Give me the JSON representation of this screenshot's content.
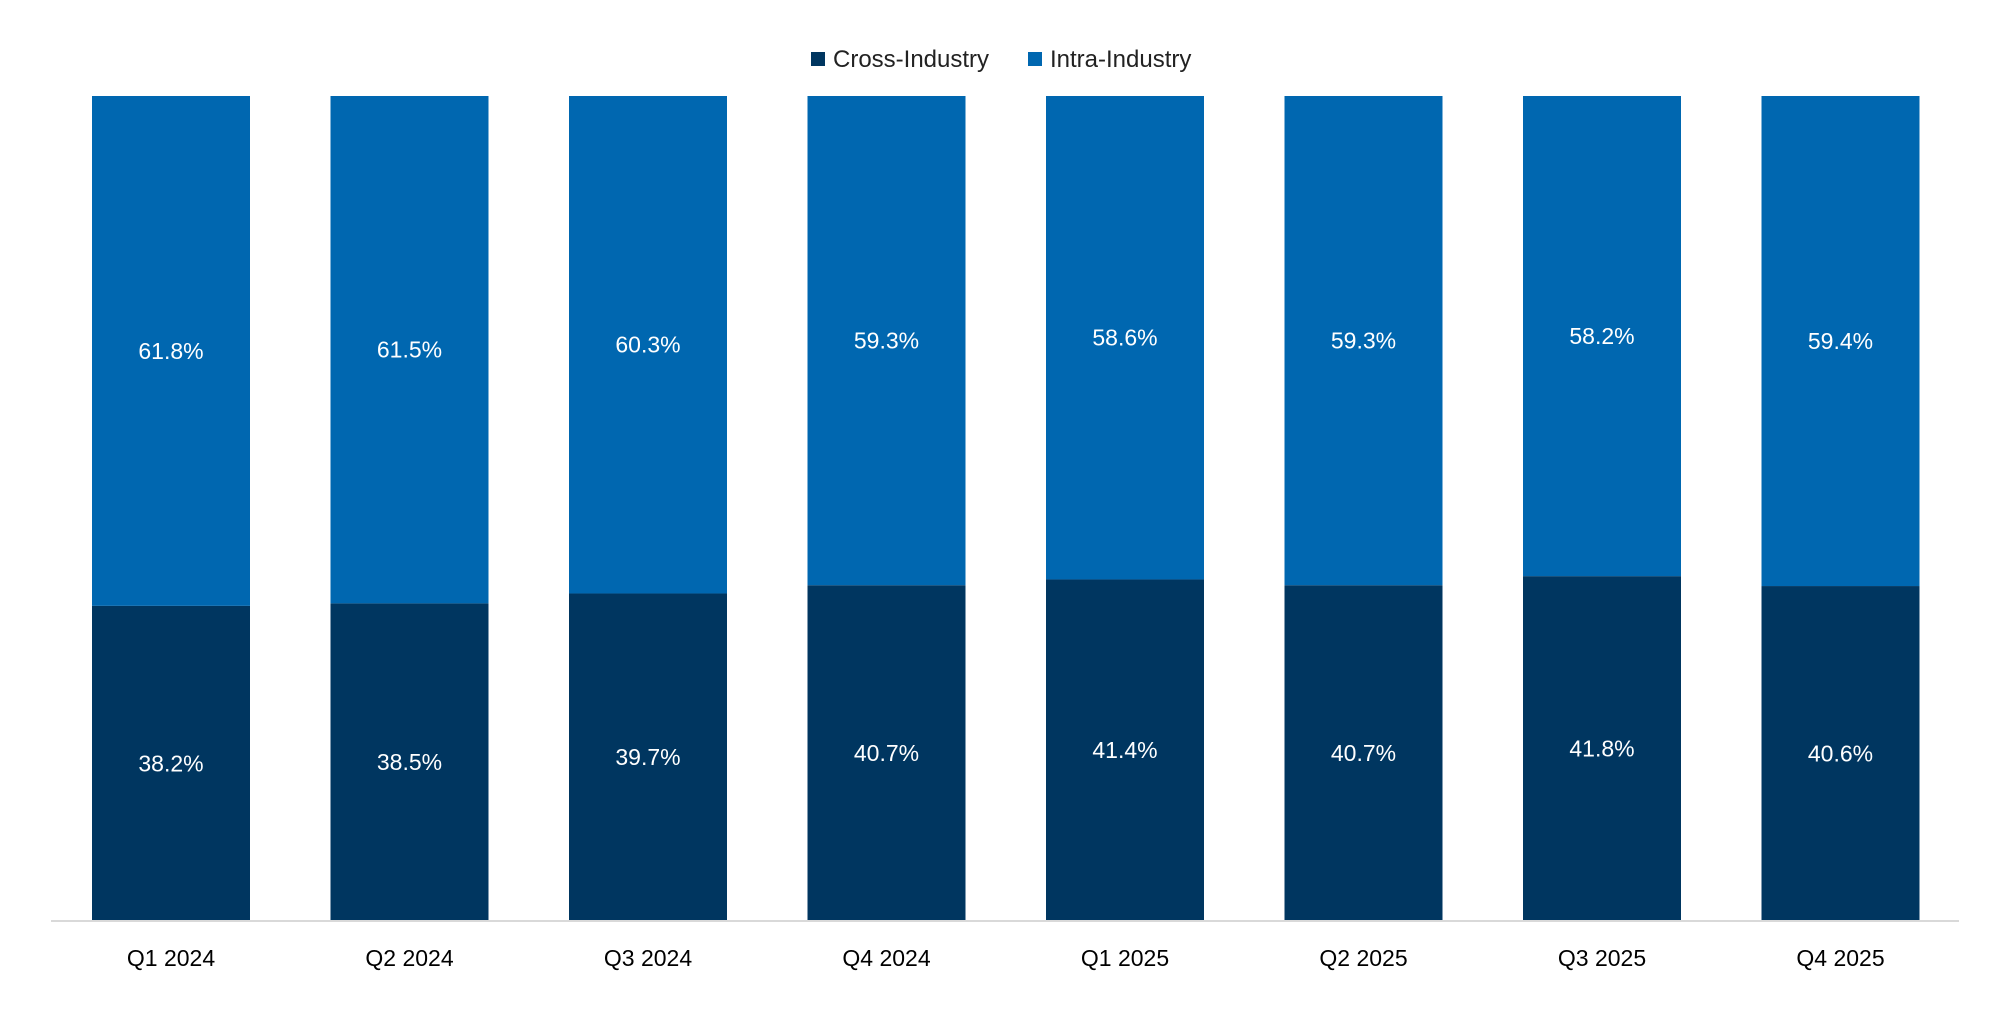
{
  "chart_data": {
    "type": "bar",
    "stacked": true,
    "categories": [
      "Q1 2024",
      "Q2 2024",
      "Q3 2024",
      "Q4 2024",
      "Q1 2025",
      "Q2 2025",
      "Q3 2025",
      "Q4 2025"
    ],
    "series": [
      {
        "name": "Cross-Industry",
        "color": "#003660",
        "values": [
          38.2,
          38.5,
          39.7,
          40.7,
          41.4,
          40.7,
          41.8,
          40.6
        ]
      },
      {
        "name": "Intra-Industry",
        "color": "#0067b0",
        "values": [
          61.8,
          61.5,
          60.3,
          59.3,
          58.6,
          59.3,
          58.2,
          59.4
        ]
      }
    ],
    "data_label_suffix": "%",
    "ylim": [
      0,
      100
    ],
    "grid": false,
    "legend_position": "top"
  }
}
